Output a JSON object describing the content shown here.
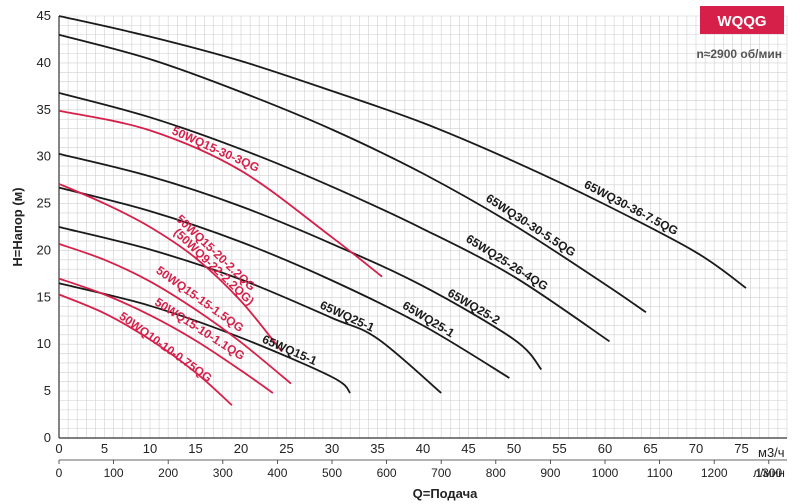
{
  "chart_data": {
    "type": "line",
    "badge": "WQQG",
    "speed_note": "n≈2900 об/мин",
    "xlabel": "Q=Подача",
    "ylabel": "H=Напор (м)",
    "x_unit_primary": "м3/ч",
    "x_unit_secondary": "л/мин",
    "xlim": [
      0,
      80
    ],
    "ylim": [
      0,
      45
    ],
    "x_ticks": [
      0,
      5,
      10,
      15,
      20,
      25,
      30,
      35,
      40,
      45,
      50,
      55,
      60,
      65,
      70,
      75
    ],
    "x_ticks_secondary": [
      0,
      100,
      200,
      300,
      400,
      500,
      600,
      700,
      800,
      900,
      1000,
      1100,
      1200,
      1300
    ],
    "y_ticks": [
      0,
      5,
      10,
      15,
      20,
      25,
      30,
      35,
      40,
      45
    ],
    "grid": true,
    "colors": {
      "black_series": "#1a1a1a",
      "red_series": "#d6204a",
      "badge_bg": "#d6204a",
      "grid": "#d0d0d0"
    },
    "series": [
      {
        "name": "65WQ30-36-7.5QG",
        "color": "black",
        "x": [
          0,
          10,
          20,
          30,
          40,
          50,
          60,
          70,
          75.5
        ],
        "y": [
          45,
          42.8,
          40.2,
          37,
          33.6,
          29.5,
          24.9,
          19.8,
          16
        ]
      },
      {
        "name": "65WQ30-30-5.5QG",
        "color": "black",
        "x": [
          0,
          10,
          20,
          30,
          40,
          50,
          60,
          64.5
        ],
        "y": [
          43,
          40.4,
          36.9,
          32.9,
          28.2,
          22.7,
          16.4,
          13.4
        ]
      },
      {
        "name": "65WQ25-26-4QG",
        "color": "black",
        "x": [
          0,
          10,
          20,
          30,
          40,
          50,
          60.5
        ],
        "y": [
          36.8,
          34.2,
          30.8,
          26.8,
          22.3,
          17.2,
          10.3
        ]
      },
      {
        "name": "65WQ25-2",
        "color": "black",
        "x": [
          0,
          10,
          20,
          30,
          40,
          50,
          53
        ],
        "y": [
          30.3,
          27.9,
          24.7,
          20.7,
          16.2,
          10.5,
          7.3
        ]
      },
      {
        "name": "65WQ25-1",
        "color": "black",
        "x": [
          0,
          10,
          20,
          30,
          40,
          49.5
        ],
        "y": [
          26.7,
          24.2,
          20.9,
          16.8,
          12,
          6.4
        ]
      },
      {
        "name": "65WQ25-1",
        "color": "black",
        "x": [
          0,
          10,
          20,
          30,
          35,
          42
        ],
        "y": [
          22.5,
          20.1,
          16.9,
          12.8,
          10.6,
          4.8
        ]
      },
      {
        "name": "65WQ15-1",
        "color": "black",
        "x": [
          0,
          10,
          20,
          30,
          32
        ],
        "y": [
          16.5,
          14.1,
          10.7,
          6.5,
          4.8
        ]
      },
      {
        "name": "50WQ15-30-3QG",
        "color": "red",
        "x": [
          0,
          10,
          20,
          30,
          35.5
        ],
        "y": [
          34.9,
          32.8,
          28.5,
          21.4,
          17.2
        ]
      },
      {
        "name": "50WQ15-20-2.2QG (50WQ9-22-2.2QG)",
        "color": "red",
        "x": [
          0,
          5,
          10,
          15,
          20,
          24.5
        ],
        "y": [
          27.1,
          25,
          22.5,
          19.2,
          14.6,
          9.2
        ]
      },
      {
        "name": "50WQ15-15-1.5QG",
        "color": "red",
        "x": [
          0,
          5,
          10,
          15,
          20,
          25.5
        ],
        "y": [
          20.7,
          19,
          16.7,
          13.7,
          10.2,
          5.8
        ]
      },
      {
        "name": "50WQ15-10-1.1QG",
        "color": "red",
        "x": [
          0,
          5,
          10,
          15,
          20,
          23.5
        ],
        "y": [
          17,
          15.3,
          13.1,
          10.4,
          7.2,
          4.8
        ]
      },
      {
        "name": "50WQ10-10-0.75QG",
        "color": "red",
        "x": [
          0,
          5,
          10,
          15,
          19
        ],
        "y": [
          15.3,
          13.3,
          10.5,
          7,
          3.5
        ]
      }
    ],
    "curve_labels": [
      {
        "text": "65WQ30-36-7.5QG",
        "series": 0
      },
      {
        "text": "65WQ30-30-5.5QG",
        "series": 1
      },
      {
        "text": "65WQ25-26-4QG",
        "series": 2
      },
      {
        "text": "65WQ25-2",
        "series": 3
      },
      {
        "text": "65WQ25-1",
        "series": 4
      },
      {
        "text": "65WQ25-1",
        "series": 5
      },
      {
        "text": "65WQ15-1",
        "series": 6
      },
      {
        "text": "50WQ15-30-3QG",
        "series": 7
      },
      {
        "text": "50WQ15-20-2.2QG",
        "series": 8
      },
      {
        "text": "(50WQ9-22-2.2QG)",
        "series": 8
      },
      {
        "text": "50WQ15-15-1.5QG",
        "series": 9
      },
      {
        "text": "50WQ15-10-1.1QG",
        "series": 10
      },
      {
        "text": "50WQ10-10-0.75QG",
        "series": 11
      }
    ]
  }
}
